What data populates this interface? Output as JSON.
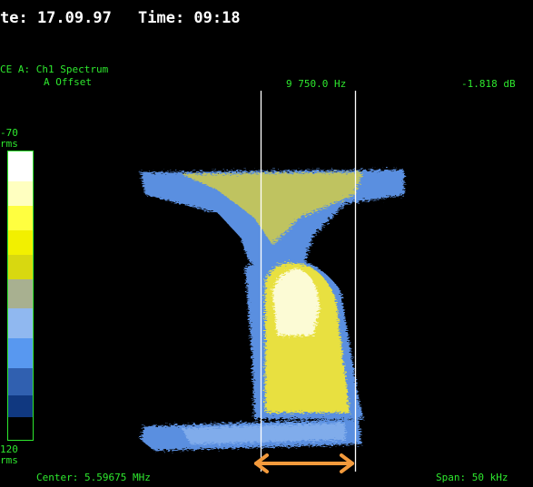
{
  "header": {
    "date": "te: 17.09.97",
    "time": "Time: 09:18"
  },
  "trace": {
    "label": "CE A: Ch1 Spectrum",
    "offset": "A Offset",
    "marker_freq": "9 750.0 Hz",
    "marker_level": "-1.818 dB"
  },
  "scale": {
    "top": "-70",
    "top_unit": "rms",
    "bottom": "120",
    "bottom_unit": "rms"
  },
  "footer": {
    "center": "Center: 5.59675 MHz",
    "span": "Span: 50 kHz"
  }
}
